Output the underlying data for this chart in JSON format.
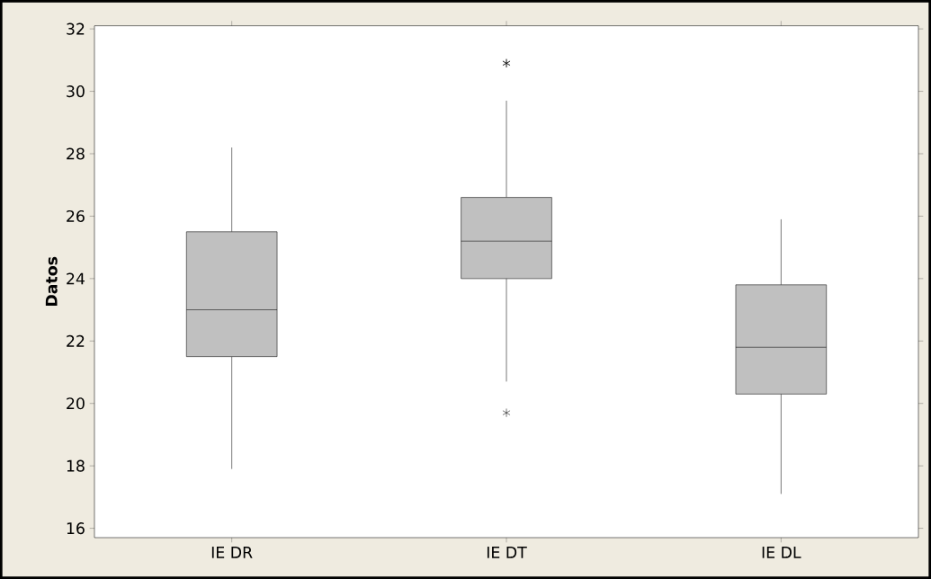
{
  "chart_data": {
    "type": "box",
    "ylabel": "Datos",
    "categories": [
      "IE DR",
      "IE DT",
      "IE DL"
    ],
    "color": "#c0c0c0",
    "marker": "star",
    "boxes": [
      {
        "low": 17.9,
        "q1": 21.5,
        "median": 23.0,
        "q3": 25.5,
        "high": 28.2
      },
      {
        "low": 20.7,
        "q1": 24.0,
        "median": 25.2,
        "q3": 26.6,
        "high": 29.7,
        "outliers": [
          30.9,
          30.9,
          19.7
        ]
      },
      {
        "low": 17.1,
        "q1": 20.3,
        "median": 21.8,
        "q3": 23.8,
        "high": 25.9
      }
    ],
    "ylim": [
      15.7,
      32.1
    ],
    "yticks": [
      16,
      18,
      20,
      22,
      24,
      26,
      28,
      30,
      32
    ],
    "grid": false
  }
}
